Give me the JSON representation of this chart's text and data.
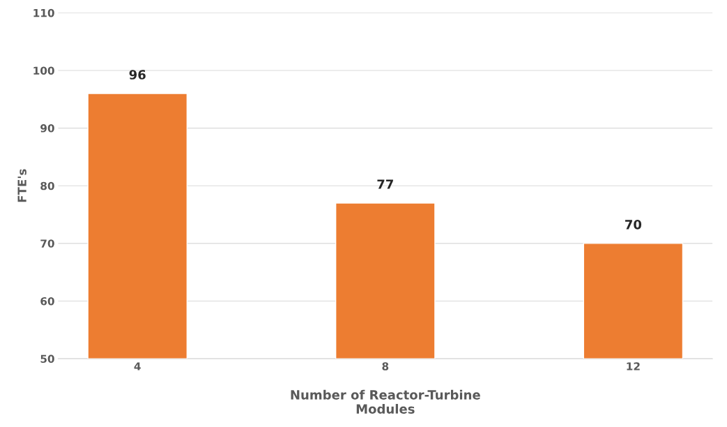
{
  "chart_data": {
    "type": "bar",
    "xlabel": "Number of Reactor-Turbine\nModules",
    "ylabel": "FTE's",
    "categories": [
      "4",
      "8",
      "12"
    ],
    "values": [
      96,
      77,
      70
    ],
    "data_labels": true,
    "color": "#ed7d31",
    "ylim": [
      50,
      110
    ],
    "yticks": [
      50,
      60,
      70,
      80,
      90,
      100,
      110
    ],
    "grid": "y"
  }
}
